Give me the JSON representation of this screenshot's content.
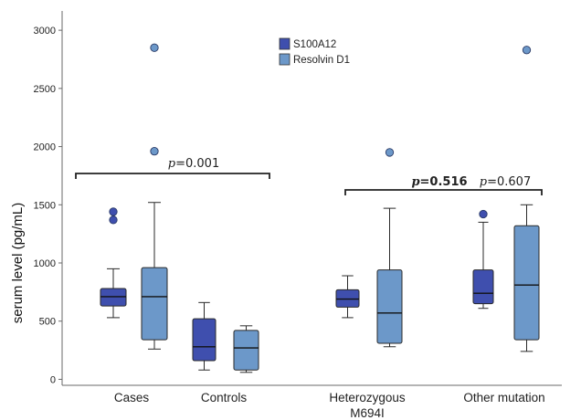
{
  "chart_data": {
    "type": "box",
    "ylabel": "serum level (pg/mL)",
    "ylim": [
      -20,
      3150
    ],
    "yticks": [
      "0",
      "500",
      "1000",
      "1500",
      "2000",
      "2500",
      "3000"
    ],
    "ytick_values": [
      0,
      500,
      1000,
      1500,
      2000,
      2500,
      3000
    ],
    "grid": false,
    "legend_position": "top-center",
    "series": [
      {
        "name": "S100A12",
        "color": "#3f4fae"
      },
      {
        "name": "Resolvin D1",
        "color": "#6c98c9"
      }
    ],
    "groups": [
      {
        "label_lines": [
          "Cases"
        ],
        "boxes": [
          {
            "series": "S100A12",
            "min": 530,
            "q1": 630,
            "median": 710,
            "q3": 780,
            "max": 950,
            "outliers": [
              1370,
              1440
            ]
          },
          {
            "series": "Resolvin D1",
            "min": 260,
            "q1": 340,
            "median": 710,
            "q3": 960,
            "max": 1520,
            "outliers": [
              1960,
              2850
            ]
          }
        ]
      },
      {
        "label_lines": [
          "Controls"
        ],
        "boxes": [
          {
            "series": "S100A12",
            "min": 80,
            "q1": 160,
            "median": 280,
            "q3": 520,
            "max": 660,
            "outliers": []
          },
          {
            "series": "Resolvin D1",
            "min": 60,
            "q1": 80,
            "median": 270,
            "q3": 420,
            "max": 460,
            "outliers": []
          }
        ]
      },
      {
        "label_lines": [
          "Heterozygous",
          "M694I"
        ],
        "boxes": [
          {
            "series": "S100A12",
            "min": 530,
            "q1": 620,
            "median": 690,
            "q3": 770,
            "max": 890,
            "outliers": []
          },
          {
            "series": "Resolvin D1",
            "min": 280,
            "q1": 310,
            "median": 570,
            "q3": 940,
            "max": 1470,
            "outliers": [
              1950
            ]
          }
        ]
      },
      {
        "label_lines": [
          "Other mutation"
        ],
        "boxes": [
          {
            "series": "S100A12",
            "min": 610,
            "q1": 650,
            "median": 740,
            "q3": 940,
            "max": 1350,
            "outliers": [
              1420
            ]
          },
          {
            "series": "Resolvin D1",
            "min": 240,
            "q1": 340,
            "median": 810,
            "q3": 1320,
            "max": 1500,
            "outliers": [
              2830
            ]
          }
        ]
      }
    ],
    "annotations": [
      {
        "label": "p",
        "value": "=0.001",
        "bold": false
      },
      {
        "label": "p",
        "value": "=0.516",
        "bold": true
      },
      {
        "label": "p",
        "value": "=0.607",
        "bold": false
      }
    ]
  }
}
